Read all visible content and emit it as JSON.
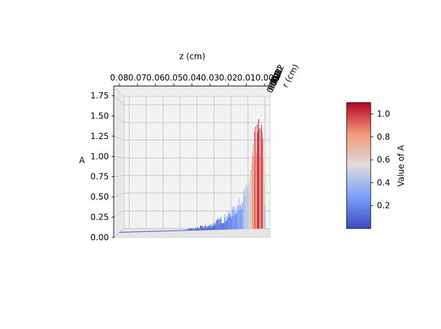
{
  "chart_data": {
    "type": "surface3d",
    "title": "",
    "zaxis": {
      "label": "A",
      "range": [
        0,
        1.85
      ],
      "ticks": [
        "0.00",
        "0.25",
        "0.50",
        "0.75",
        "1.00",
        "1.25",
        "1.50",
        "1.75"
      ]
    },
    "xaxis": {
      "label": "z (cm)",
      "range": [
        0.08,
        0.0
      ],
      "ticks": [
        "0.08",
        "0.07",
        "0.06",
        "0.05",
        "0.04",
        "0.03",
        "0.02",
        "0.01",
        "0.00"
      ]
    },
    "yaxis": {
      "label": "r (cm)",
      "ticks": [
        "0.00",
        "0.02",
        "0.05",
        "0.08",
        "0.10",
        "0.12"
      ]
    },
    "colorbar": {
      "label": "Value of A",
      "colormap": "coolwarm",
      "range": [
        0.0,
        1.1
      ],
      "ticks": [
        "0.2",
        "0.4",
        "0.6",
        "0.8",
        "1.0"
      ]
    },
    "profile": {
      "z": [
        0.08,
        0.075,
        0.07,
        0.065,
        0.06,
        0.055,
        0.05,
        0.045,
        0.04,
        0.035,
        0.03,
        0.025,
        0.02,
        0.015,
        0.01,
        0.007,
        0.005,
        0.003,
        0.001,
        0.0
      ],
      "A_max": [
        0.02,
        0.05,
        0.05,
        0.06,
        0.07,
        0.08,
        0.08,
        0.1,
        0.12,
        0.15,
        0.17,
        0.25,
        0.32,
        0.45,
        0.7,
        1.05,
        1.45,
        1.5,
        1.4,
        0.5
      ],
      "A_min": [
        0.0,
        0.02,
        0.03,
        0.03,
        0.04,
        0.04,
        0.05,
        0.05,
        0.06,
        0.07,
        0.08,
        0.1,
        0.12,
        0.2,
        0.3,
        0.4,
        0.5,
        0.5,
        0.45,
        0.1
      ]
    },
    "grid": true
  }
}
